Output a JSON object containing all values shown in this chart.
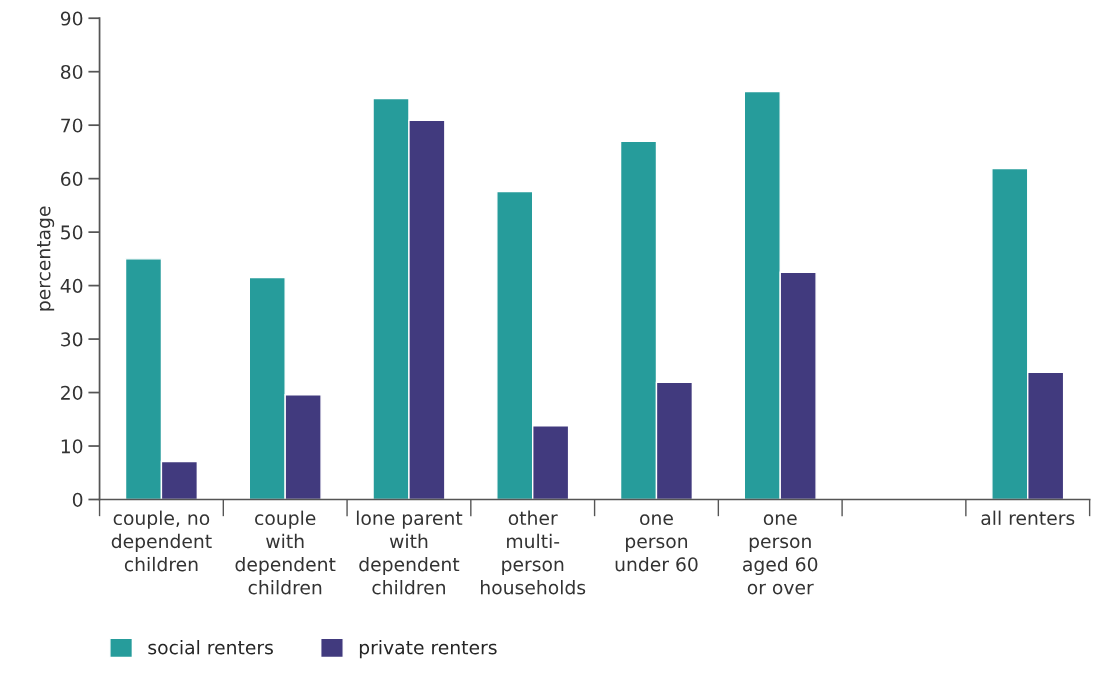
{
  "chart_data": {
    "type": "bar",
    "categories": [
      "couple, no\ndependent\nchildren",
      "couple\nwith\ndependent\nchildren",
      "lone parent\nwith\ndependent\nchildren",
      "other\nmulti-\nperson\nhouseholds",
      "one\nperson\nunder 60",
      "one\nperson\naged 60\nor over",
      null,
      "all renters"
    ],
    "series": [
      {
        "name": "social renters",
        "color": "#269c9b",
        "values": [
          45,
          41.5,
          75,
          57.6,
          67,
          76.3,
          null,
          61.9
        ]
      },
      {
        "name": "private renters",
        "color": "#413a7e",
        "values": [
          7.1,
          19.6,
          70.9,
          13.8,
          21.9,
          42.5,
          null,
          23.8
        ]
      }
    ],
    "ylabel": "percentage",
    "ylim": [
      0,
      90
    ],
    "yticks": [
      0,
      10,
      20,
      30,
      40,
      50,
      60,
      70,
      80,
      90
    ],
    "grid": false,
    "legend": "bottom left"
  }
}
